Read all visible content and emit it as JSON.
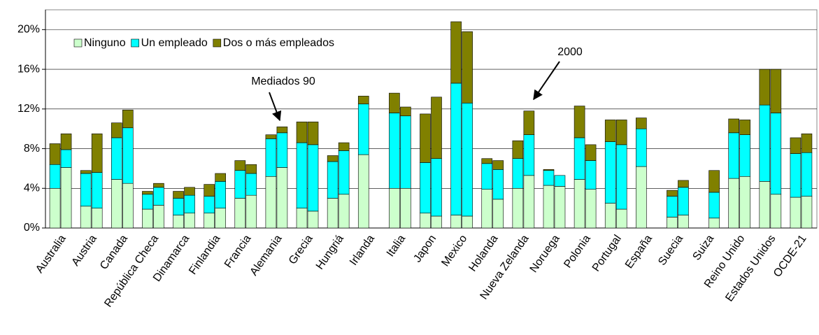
{
  "chart_data": {
    "type": "stacked-paired-bar",
    "categories": [
      "Australia",
      "Austria",
      "Canada",
      "República Checa",
      "Dinamarca",
      "Finlandia",
      "Francia",
      "Alemania",
      "Grecia",
      "Hungriá",
      "Irlanda",
      "Italia",
      "Japon",
      "Mexico",
      "Holanda",
      "Nueva Zelanda",
      "Noruega",
      "Polonia",
      "Portugal",
      "España",
      "Suecia",
      "Suiza",
      "Reino Unido",
      "Estados Unidos",
      "OCDE-21"
    ],
    "series": [
      {
        "name": "Ninguno",
        "color": "#ccffcc",
        "values": [
          [
            4.0,
            6.1
          ],
          [
            2.2,
            2.0
          ],
          [
            4.9,
            4.5
          ],
          [
            1.9,
            2.3
          ],
          [
            1.3,
            1.5
          ],
          [
            1.5,
            2.0
          ],
          [
            3.0,
            3.3
          ],
          [
            5.2,
            6.1
          ],
          [
            2.0,
            1.7
          ],
          [
            3.0,
            3.4
          ],
          [
            7.4,
            null
          ],
          [
            4.0,
            4.0
          ],
          [
            1.5,
            1.2
          ],
          [
            1.3,
            1.2
          ],
          [
            3.9,
            2.9
          ],
          [
            4.0,
            5.3
          ],
          [
            4.3,
            4.2
          ],
          [
            4.9,
            3.9
          ],
          [
            2.5,
            1.9
          ],
          [
            6.2,
            null
          ],
          [
            1.1,
            1.3
          ],
          [
            null,
            1.0
          ],
          [
            5.0,
            5.2
          ],
          [
            4.7,
            3.4
          ],
          [
            3.1,
            3.2
          ]
        ]
      },
      {
        "name": "Un empleado",
        "color": "#00ffff",
        "values": [
          [
            2.4,
            1.8
          ],
          [
            3.3,
            3.6
          ],
          [
            4.2,
            5.6
          ],
          [
            1.5,
            1.8
          ],
          [
            1.7,
            1.8
          ],
          [
            1.7,
            2.7
          ],
          [
            2.8,
            2.2
          ],
          [
            3.8,
            3.5
          ],
          [
            6.6,
            6.7
          ],
          [
            3.7,
            4.4
          ],
          [
            5.1,
            null
          ],
          [
            7.6,
            7.3
          ],
          [
            5.1,
            5.8
          ],
          [
            13.3,
            11.4
          ],
          [
            2.6,
            3.0
          ],
          [
            3.0,
            4.1
          ],
          [
            1.5,
            1.1
          ],
          [
            4.2,
            2.9
          ],
          [
            6.2,
            6.5
          ],
          [
            3.8,
            null
          ],
          [
            2.1,
            2.8
          ],
          [
            null,
            2.6
          ],
          [
            4.6,
            4.2
          ],
          [
            7.7,
            8.2
          ],
          [
            4.4,
            4.4
          ]
        ]
      },
      {
        "name": "Dos o más empleados",
        "color": "#808000",
        "values": [
          [
            2.1,
            1.6
          ],
          [
            0.3,
            3.9
          ],
          [
            1.5,
            1.8
          ],
          [
            0.3,
            0.4
          ],
          [
            0.7,
            0.8
          ],
          [
            1.2,
            0.8
          ],
          [
            1.0,
            0.9
          ],
          [
            0.4,
            0.6
          ],
          [
            2.1,
            2.3
          ],
          [
            0.6,
            0.8
          ],
          [
            0.8,
            null
          ],
          [
            2.0,
            0.9
          ],
          [
            4.9,
            6.2
          ],
          [
            6.2,
            7.2
          ],
          [
            0.5,
            0.9
          ],
          [
            1.8,
            2.4
          ],
          [
            0.1,
            0.0
          ],
          [
            3.2,
            1.6
          ],
          [
            2.2,
            2.5
          ],
          [
            1.1,
            null
          ],
          [
            0.6,
            0.7
          ],
          [
            null,
            2.2
          ],
          [
            1.4,
            1.5
          ],
          [
            3.6,
            4.4
          ],
          [
            1.6,
            1.9
          ]
        ]
      }
    ],
    "annotations": [
      "Mediados 90",
      "2000"
    ],
    "ylim": [
      0,
      22
    ],
    "yticks": [
      {
        "value": 0,
        "label": "0%"
      },
      {
        "value": 4,
        "label": "4%"
      },
      {
        "value": 8,
        "label": "8%"
      },
      {
        "value": 12,
        "label": "12%"
      },
      {
        "value": 16,
        "label": "16%"
      },
      {
        "value": 20,
        "label": "20%"
      }
    ],
    "grid": true,
    "legend": "top-left"
  }
}
